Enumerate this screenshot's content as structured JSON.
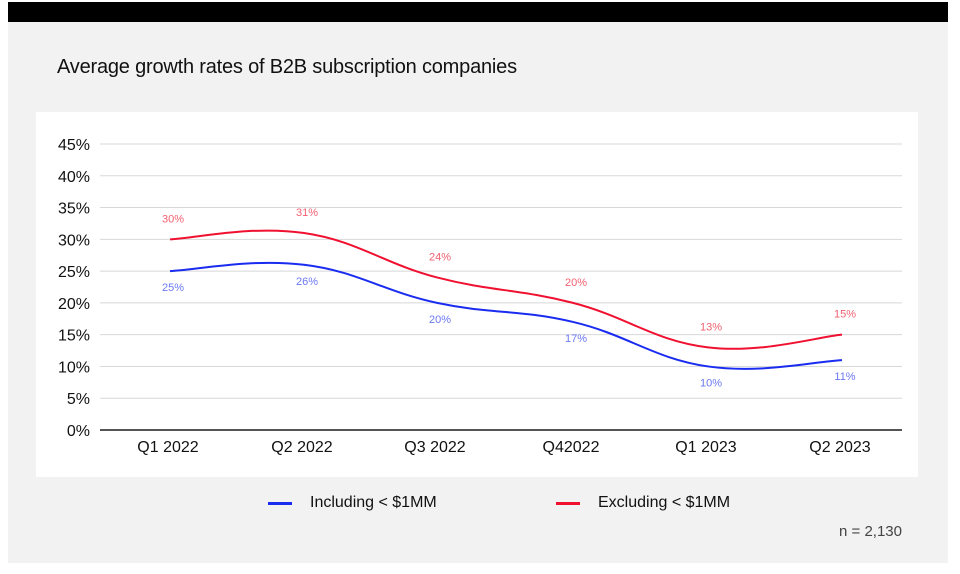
{
  "chart_data": {
    "type": "line",
    "title": "Average growth rates of B2B subscription companies",
    "categories": [
      "Q1 2022",
      "Q2 2022",
      "Q3 2022",
      "Q42022",
      "Q1 2023",
      "Q2 2023"
    ],
    "y_ticks": [
      "0%",
      "5%",
      "10%",
      "15%",
      "20%",
      "25%",
      "30%",
      "35%",
      "40%",
      "45%"
    ],
    "ylim": [
      0,
      45
    ],
    "grid": true,
    "legend_placement": "bottom",
    "series": [
      {
        "name": "Including < $1MM",
        "color": "#1a2cf0",
        "label_color": "#6b78f2",
        "values": [
          25,
          26,
          20,
          17,
          10,
          11
        ],
        "labels": [
          "25%",
          "26%",
          "20%",
          "17%",
          "10%",
          "11%"
        ]
      },
      {
        "name": "Excluding < $1MM",
        "color": "#f01030",
        "label_color": "#f26070",
        "values": [
          30,
          31,
          24,
          20,
          13,
          15
        ],
        "labels": [
          "30%",
          "31%",
          "24%",
          "20%",
          "13%",
          "15%"
        ]
      }
    ],
    "note": "n = 2,130"
  }
}
